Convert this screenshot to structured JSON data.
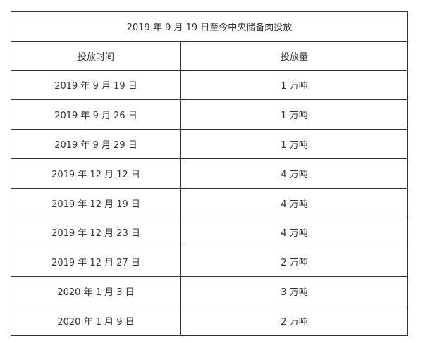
{
  "table": {
    "title": "2019 年 9 月 19 日至今中央储备肉投放",
    "headers": [
      "投放时间",
      "投放量"
    ],
    "rows": [
      [
        "2019 年 9 月 19 日",
        "1 万吨"
      ],
      [
        "2019 年 9 月 26 日",
        "1 万吨"
      ],
      [
        "2019 年 9 月 29 日",
        "1 万吨"
      ],
      [
        "2019 年 12 月 12 日",
        "4 万吨"
      ],
      [
        "2019 年 12 月 19 日",
        "4 万吨"
      ],
      [
        "2019 年 12 月 23 日",
        "4 万吨"
      ],
      [
        "2019 年 12 月 27 日",
        "2 万吨"
      ],
      [
        "2020 年 1 月 3 日",
        "3 万吨"
      ],
      [
        "2020 年 1 月 9 日",
        "2 万吨"
      ]
    ]
  }
}
